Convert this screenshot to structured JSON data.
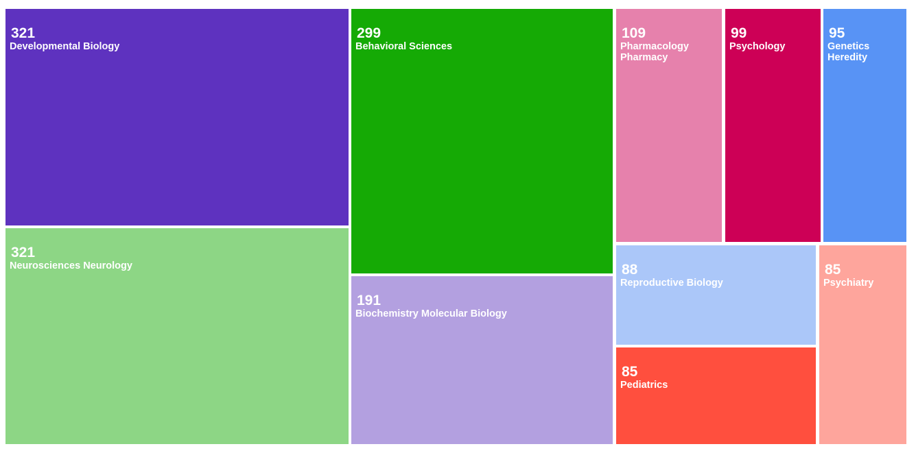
{
  "chart_data": {
    "type": "treemap",
    "title": "",
    "items": [
      {
        "label": "Developmental Biology",
        "value": 321,
        "color": "#5e32bf"
      },
      {
        "label": "Neurosciences Neurology",
        "value": 321,
        "color": "#8dd685"
      },
      {
        "label": "Behavioral Sciences",
        "value": 299,
        "color": "#15aa05"
      },
      {
        "label": "Biochemistry Molecular Biology",
        "value": 191,
        "color": "#b3a0e0"
      },
      {
        "label": "Pharmacology\nPharmacy",
        "value": 109,
        "color": "#e681ac"
      },
      {
        "label": "Psychology",
        "value": 99,
        "color": "#cd0056"
      },
      {
        "label": "Genetics\nHeredity",
        "value": 95,
        "color": "#5893f5"
      },
      {
        "label": "Reproductive Biology",
        "value": 88,
        "color": "#abc7f9"
      },
      {
        "label": "Pediatrics",
        "value": 85,
        "color": "#ff4f3e"
      },
      {
        "label": "Psychiatry",
        "value": 85,
        "color": "#fea59c"
      }
    ]
  }
}
